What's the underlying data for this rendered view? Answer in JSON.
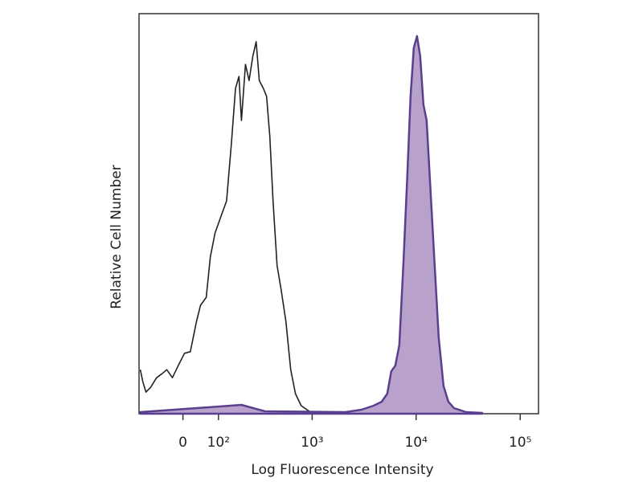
{
  "chart_data": {
    "type": "line",
    "xlabel": "Log Fluorescence Intensity",
    "ylabel": "Relative Cell Number",
    "xscale": "asinh",
    "xlim": [
      -130,
      150000
    ],
    "ylim": [
      0,
      100
    ],
    "xticks": [
      0,
      {
        "value": 100,
        "label": "10²"
      },
      {
        "value": 1000,
        "label": "10³"
      },
      {
        "value": 10000,
        "label": "10⁴"
      },
      {
        "value": 100000,
        "label": "10⁵"
      }
    ],
    "series": [
      {
        "color": "#222222",
        "fill": false,
        "x": [
          -125,
          -116,
          -105,
          -89,
          -71,
          -55,
          -42,
          -27,
          -12,
          4,
          19,
          35,
          46,
          62,
          74,
          89,
          108,
          129,
          148,
          166,
          182,
          194,
          215,
          235,
          258,
          279,
          301,
          331,
          357,
          385,
          414,
          454,
          498,
          555,
          619,
          689,
          782,
          937,
          1224,
          2500
        ],
        "values": [
          11.0,
          8.0,
          5.4,
          6.6,
          9.0,
          10.0,
          11.0,
          9.0,
          12.0,
          15.1,
          15.5,
          23.1,
          27.1,
          29.1,
          39.2,
          45.2,
          49.2,
          53.2,
          67.3,
          81.3,
          84.3,
          73.3,
          87.3,
          83.3,
          89.4,
          93.0,
          83.3,
          81.3,
          79.3,
          69.3,
          53.2,
          37.1,
          31.1,
          23.1,
          11.0,
          5.0,
          2.0,
          0.6,
          0.2,
          0.2
        ]
      },
      {
        "color": "#5b3f8f",
        "fill": true,
        "fill_color": "#b8a2cc",
        "x": [
          -125,
          194,
          344,
          2093,
          2980,
          3900,
          4660,
          5280,
          5770,
          6310,
          6890,
          7530,
          8230,
          8840,
          9500,
          10200,
          10950,
          11750,
          12620,
          13800,
          15080,
          16480,
          18340,
          20400,
          23100,
          30200,
          43100
        ],
        "values": [
          0.4,
          2.2,
          0.6,
          0.4,
          1.0,
          2.0,
          3.0,
          5.0,
          10.6,
          12.0,
          17.1,
          37.1,
          59.2,
          79.3,
          91.4,
          94.4,
          89.4,
          77.3,
          73.3,
          55.2,
          37.1,
          19.1,
          7.0,
          3.0,
          1.4,
          0.4,
          0.2
        ]
      }
    ]
  }
}
